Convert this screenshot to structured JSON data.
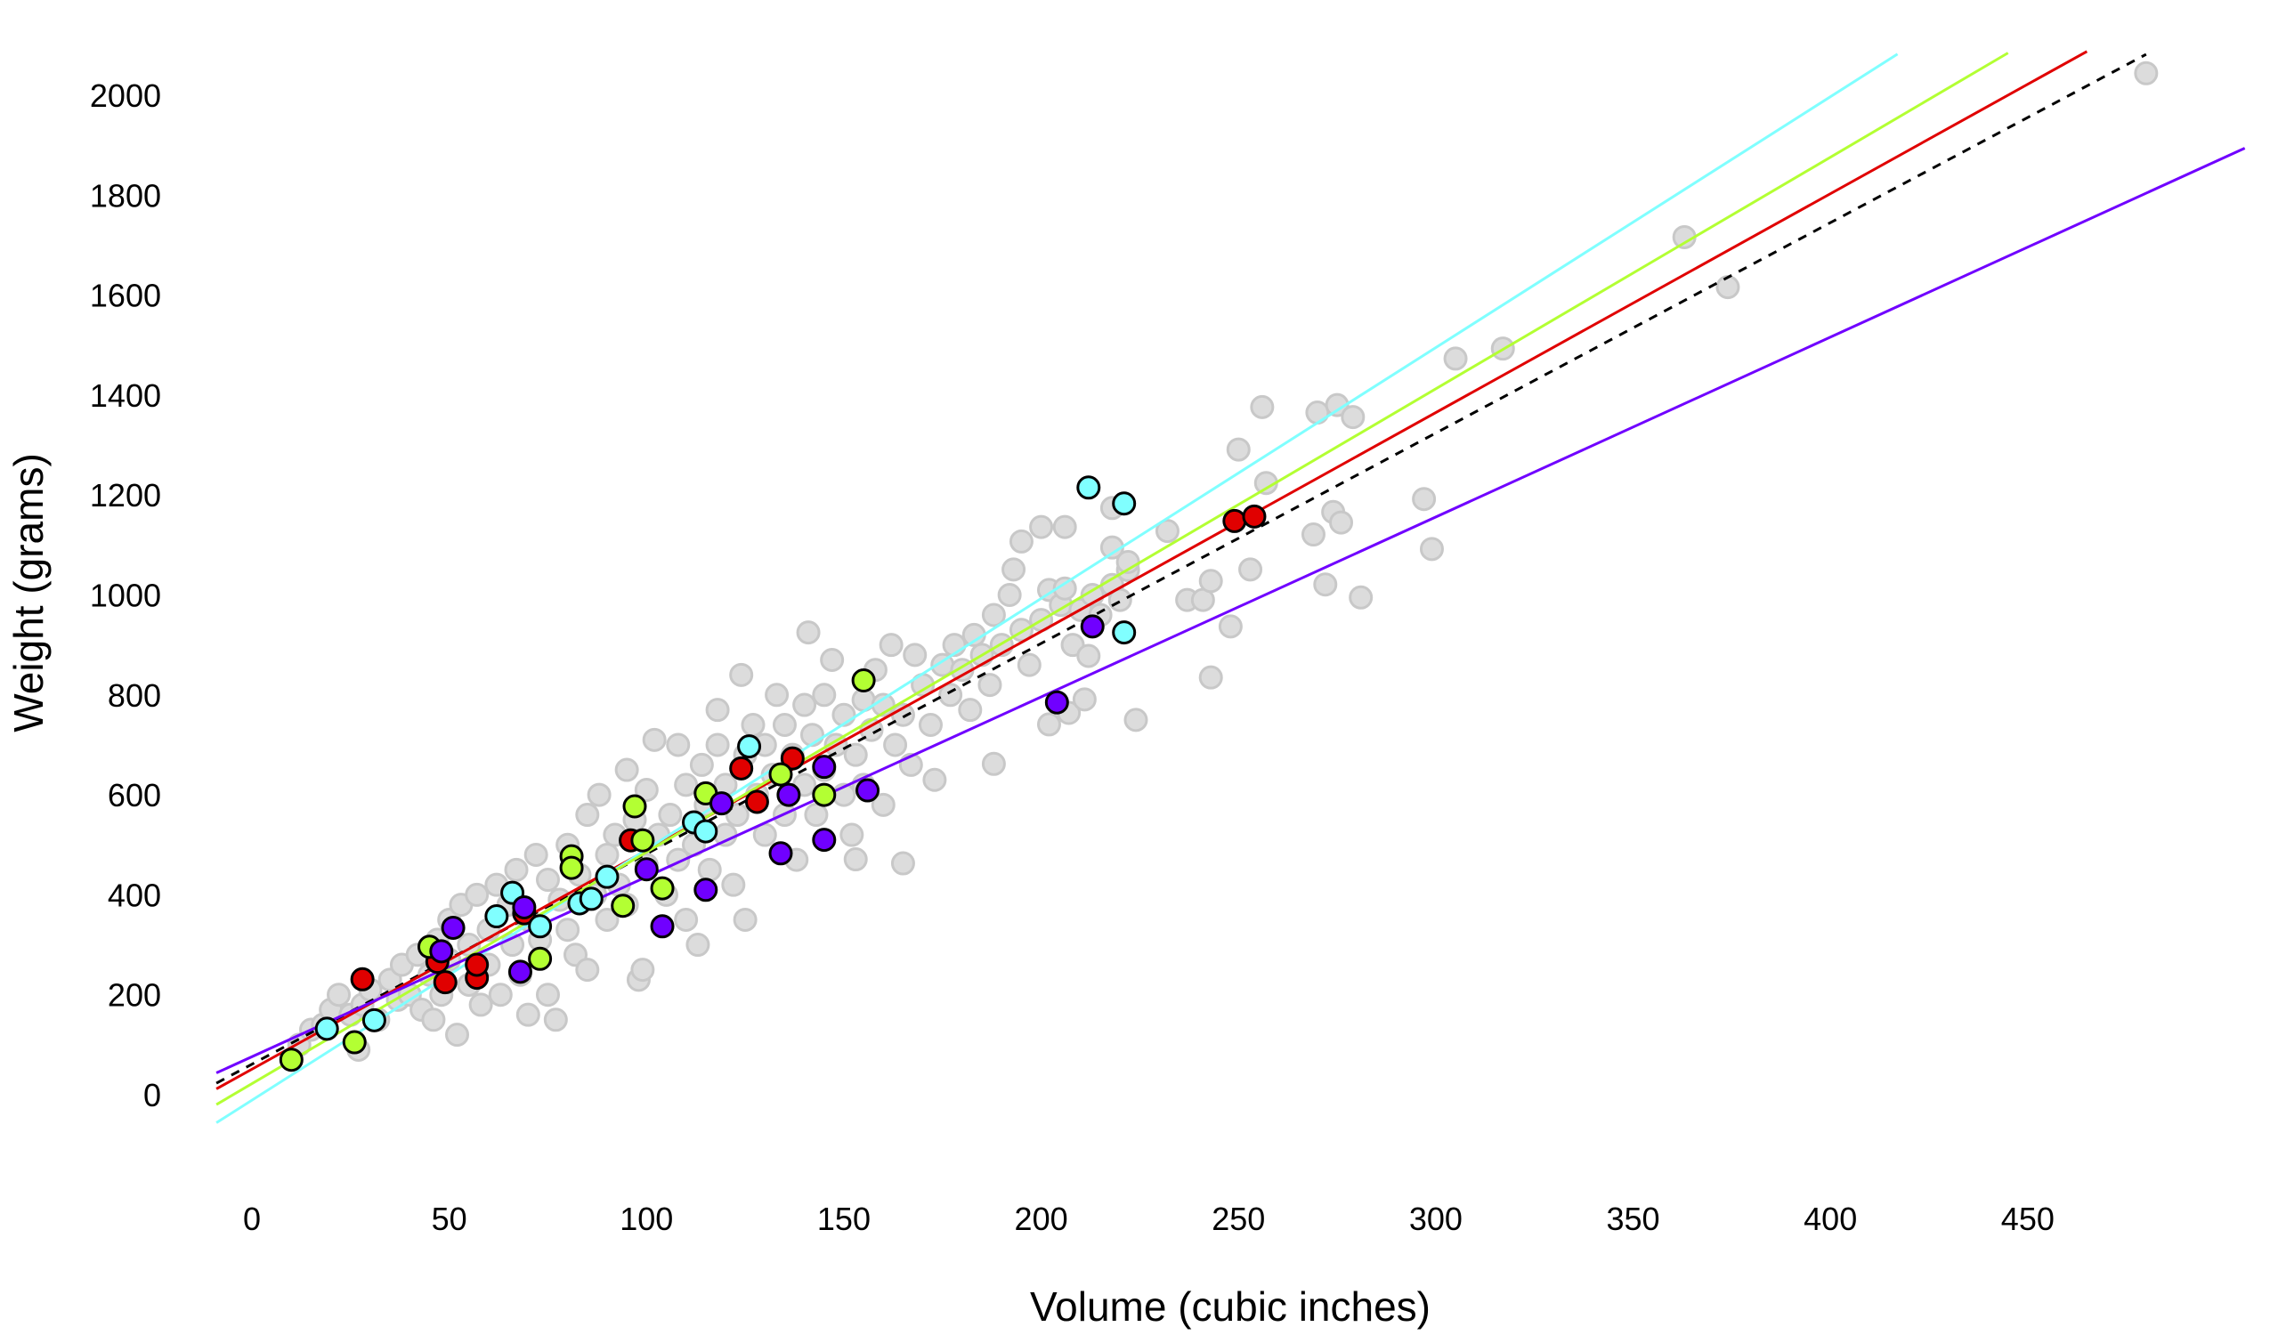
{
  "chart_data": {
    "type": "scatter",
    "title": "",
    "xlabel": "Volume (cubic inches)",
    "ylabel": "Weight (grams)",
    "xlim": [
      -9,
      505
    ],
    "ylim": [
      -130,
      2090
    ],
    "xticks": [
      0,
      50,
      100,
      150,
      200,
      250,
      300,
      350,
      400,
      450
    ],
    "yticks": [
      0,
      200,
      400,
      600,
      800,
      1000,
      1200,
      1400,
      1600,
      1800,
      2000
    ],
    "grid": false,
    "legend": "none",
    "background_points": {
      "color": "#dcdcdc",
      "points": [
        [
          12,
          100
        ],
        [
          15,
          130
        ],
        [
          18,
          140
        ],
        [
          20,
          170
        ],
        [
          22,
          200
        ],
        [
          25,
          160
        ],
        [
          27,
          90
        ],
        [
          28,
          180
        ],
        [
          30,
          210
        ],
        [
          32,
          150
        ],
        [
          35,
          230
        ],
        [
          37,
          190
        ],
        [
          38,
          260
        ],
        [
          40,
          200
        ],
        [
          42,
          280
        ],
        [
          43,
          170
        ],
        [
          45,
          240
        ],
        [
          46,
          150
        ],
        [
          47,
          310
        ],
        [
          48,
          200
        ],
        [
          50,
          270
        ],
        [
          50,
          350
        ],
        [
          52,
          120
        ],
        [
          53,
          380
        ],
        [
          55,
          300
        ],
        [
          55,
          220
        ],
        [
          57,
          400
        ],
        [
          58,
          180
        ],
        [
          60,
          330
        ],
        [
          60,
          260
        ],
        [
          62,
          420
        ],
        [
          63,
          200
        ],
        [
          65,
          380
        ],
        [
          66,
          300
        ],
        [
          67,
          450
        ],
        [
          68,
          240
        ],
        [
          70,
          350
        ],
        [
          70,
          160
        ],
        [
          72,
          480
        ],
        [
          73,
          310
        ],
        [
          75,
          430
        ],
        [
          75,
          200
        ],
        [
          77,
          150
        ],
        [
          78,
          390
        ],
        [
          80,
          500
        ],
        [
          80,
          330
        ],
        [
          82,
          280
        ],
        [
          83,
          440
        ],
        [
          85,
          560
        ],
        [
          85,
          250
        ],
        [
          87,
          400
        ],
        [
          88,
          600
        ],
        [
          90,
          350
        ],
        [
          90,
          480
        ],
        [
          92,
          520
        ],
        [
          93,
          420
        ],
        [
          95,
          650
        ],
        [
          95,
          380
        ],
        [
          97,
          550
        ],
        [
          98,
          230
        ],
        [
          99,
          250
        ],
        [
          100,
          460
        ],
        [
          100,
          610
        ],
        [
          102,
          710
        ],
        [
          103,
          520
        ],
        [
          105,
          400
        ],
        [
          106,
          560
        ],
        [
          108,
          700
        ],
        [
          108,
          470
        ],
        [
          110,
          620
        ],
        [
          110,
          350
        ],
        [
          112,
          500
        ],
        [
          113,
          300
        ],
        [
          114,
          660
        ],
        [
          115,
          580
        ],
        [
          116,
          450
        ],
        [
          118,
          770
        ],
        [
          118,
          700
        ],
        [
          120,
          620
        ],
        [
          120,
          520
        ],
        [
          122,
          420
        ],
        [
          123,
          560
        ],
        [
          124,
          840
        ],
        [
          125,
          680
        ],
        [
          125,
          350
        ],
        [
          127,
          740
        ],
        [
          128,
          600
        ],
        [
          130,
          520
        ],
        [
          130,
          700
        ],
        [
          132,
          640
        ],
        [
          133,
          800
        ],
        [
          135,
          560
        ],
        [
          135,
          740
        ],
        [
          137,
          680
        ],
        [
          138,
          470
        ],
        [
          140,
          620
        ],
        [
          140,
          780
        ],
        [
          141,
          925
        ],
        [
          142,
          720
        ],
        [
          143,
          560
        ],
        [
          145,
          800
        ],
        [
          145,
          650
        ],
        [
          147,
          870
        ],
        [
          148,
          700
        ],
        [
          150,
          600
        ],
        [
          150,
          760
        ],
        [
          152,
          520
        ],
        [
          153,
          680
        ],
        [
          153,
          471
        ],
        [
          155,
          790
        ],
        [
          155,
          620
        ],
        [
          157,
          730
        ],
        [
          158,
          850
        ],
        [
          160,
          780
        ],
        [
          160,
          580
        ],
        [
          162,
          900
        ],
        [
          163,
          700
        ],
        [
          165,
          760
        ],
        [
          165,
          463
        ],
        [
          167,
          660
        ],
        [
          168,
          880
        ],
        [
          170,
          820
        ],
        [
          172,
          740
        ],
        [
          173,
          630
        ],
        [
          175,
          860
        ],
        [
          177,
          800
        ],
        [
          178,
          900
        ],
        [
          180,
          850
        ],
        [
          182,
          770
        ],
        [
          183,
          920
        ],
        [
          185,
          880
        ],
        [
          187,
          820
        ],
        [
          188,
          960
        ],
        [
          188,
          662
        ],
        [
          190,
          900
        ],
        [
          192,
          1000
        ],
        [
          193,
          1051
        ],
        [
          195,
          930
        ],
        [
          195,
          1107
        ],
        [
          197,
          860
        ],
        [
          200,
          950
        ],
        [
          200,
          1136
        ],
        [
          202,
          1010
        ],
        [
          202,
          741
        ],
        [
          205,
          980
        ],
        [
          206,
          1136
        ],
        [
          206,
          1013
        ],
        [
          207,
          764
        ],
        [
          208,
          900
        ],
        [
          210,
          970
        ],
        [
          211,
          791
        ],
        [
          212,
          878
        ],
        [
          213,
          1000
        ],
        [
          215,
          960
        ],
        [
          218,
          1020
        ],
        [
          218,
          1095
        ],
        [
          218,
          1174
        ],
        [
          220,
          990
        ],
        [
          222,
          1050
        ],
        [
          222,
          1066
        ],
        [
          224,
          750
        ],
        [
          232,
          1128
        ],
        [
          237,
          990
        ],
        [
          241,
          990
        ],
        [
          243,
          1028
        ],
        [
          243,
          835
        ],
        [
          248,
          937
        ],
        [
          250,
          1291
        ],
        [
          253,
          1051
        ],
        [
          256,
          1376
        ],
        [
          257,
          1224
        ],
        [
          269,
          1121
        ],
        [
          270,
          1365
        ],
        [
          272,
          1021
        ],
        [
          274,
          1166
        ],
        [
          275,
          1380
        ],
        [
          276,
          1145
        ],
        [
          279,
          1356
        ],
        [
          281,
          995
        ],
        [
          297,
          1192
        ],
        [
          299,
          1092
        ],
        [
          305,
          1473
        ],
        [
          317,
          1493
        ],
        [
          363,
          1716
        ],
        [
          374,
          1616
        ],
        [
          480,
          2044
        ]
      ]
    },
    "series": [
      {
        "color": "#e00000",
        "points": [
          [
            28,
            231
          ],
          [
            49,
            225
          ],
          [
            57,
            234
          ],
          [
            57,
            260
          ],
          [
            47,
            266
          ],
          [
            69,
            363
          ],
          [
            96,
            509
          ],
          [
            124,
            653
          ],
          [
            128,
            586
          ],
          [
            137,
            673
          ],
          [
            249,
            1148
          ],
          [
            254,
            1157
          ]
        ],
        "fit": {
          "slope": 4.38,
          "intercept": 51,
          "x_end": 465
        }
      },
      {
        "color": "#80ffff",
        "points": [
          [
            19,
            132
          ],
          [
            31,
            149
          ],
          [
            62,
            357
          ],
          [
            66,
            404
          ],
          [
            73,
            337
          ],
          [
            83,
            383
          ],
          [
            86,
            392
          ],
          [
            90,
            436
          ],
          [
            112,
            545
          ],
          [
            115,
            527
          ],
          [
            126,
            697
          ],
          [
            212,
            1215
          ],
          [
            221,
            1183
          ],
          [
            221,
            925
          ]
        ],
        "fit": {
          "slope": 5.02,
          "intercept": -11,
          "x_end": 417
        }
      },
      {
        "color": "#b3ff33",
        "points": [
          [
            10,
            70
          ],
          [
            26,
            105
          ],
          [
            45,
            296
          ],
          [
            73,
            272
          ],
          [
            81,
            477
          ],
          [
            81,
            454
          ],
          [
            94,
            378
          ],
          [
            97,
            577
          ],
          [
            99,
            509
          ],
          [
            104,
            413
          ],
          [
            115,
            603
          ],
          [
            134,
            641
          ],
          [
            145,
            600
          ],
          [
            155,
            829
          ]
        ],
        "fit": {
          "slope": 4.635,
          "intercept": 22,
          "x_end": 445
        }
      },
      {
        "color": "#7000ff",
        "points": [
          [
            48,
            287
          ],
          [
            51,
            334
          ],
          [
            68,
            246
          ],
          [
            69,
            375
          ],
          [
            100,
            451
          ],
          [
            104,
            337
          ],
          [
            115,
            410
          ],
          [
            119,
            583
          ],
          [
            134,
            483
          ],
          [
            136,
            600
          ],
          [
            145,
            656
          ],
          [
            145,
            510
          ],
          [
            156,
            609
          ],
          [
            204,
            785
          ],
          [
            213,
            937
          ]
        ],
        "fit": {
          "slope": 3.6,
          "intercept": 76,
          "x_end": 505
        }
      }
    ],
    "overall_fit": {
      "color": "#000000",
      "style": "dashed",
      "slope": 4.21,
      "intercept": 61,
      "x_end": 480
    }
  }
}
